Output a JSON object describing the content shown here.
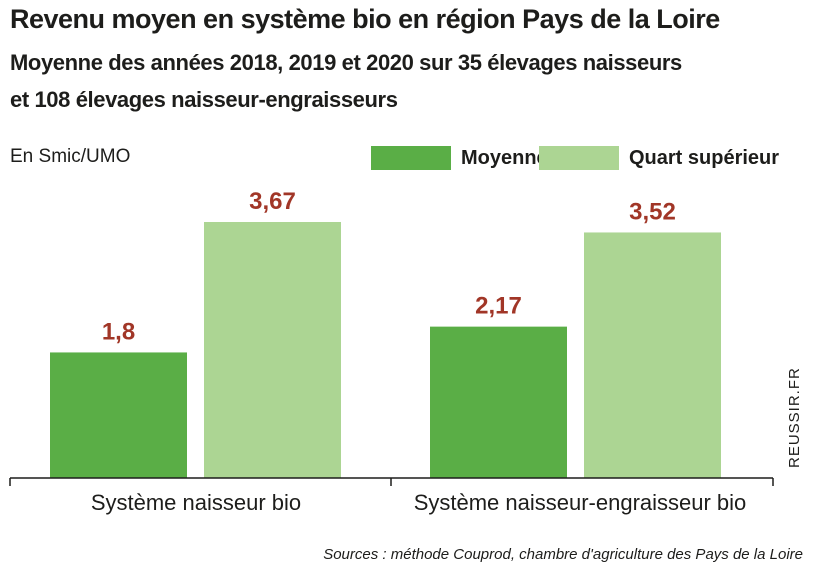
{
  "chart_data": {
    "type": "bar",
    "title": "Revenu moyen en système bio en région Pays de la Loire",
    "subtitle": [
      "Moyenne des années 2018, 2019 et 2020 sur 35 élevages naisseurs",
      "et 108 élevages naisseur-engraisseurs"
    ],
    "ylabel": "En Smic/UMO",
    "categories": [
      "Système naisseur bio",
      "Système naisseur-engraisseur bio"
    ],
    "series": [
      {
        "name": "Moyenne",
        "color": "#5aae46",
        "values": [
          1.8,
          2.17
        ],
        "labels": [
          "1,8",
          "2,17"
        ]
      },
      {
        "name": "Quart supérieur",
        "color": "#acd593",
        "values": [
          3.67,
          3.52
        ],
        "labels": [
          "3,67",
          "3,52"
        ]
      }
    ],
    "ylim": [
      0,
      3.67
    ],
    "grid": false,
    "legend_position": "top-right",
    "label_color": "#a13627"
  },
  "watermark": "REUSSIR.FR",
  "source": "Sources : méthode Couprod, chambre d'agriculture des Pays de la Loire"
}
